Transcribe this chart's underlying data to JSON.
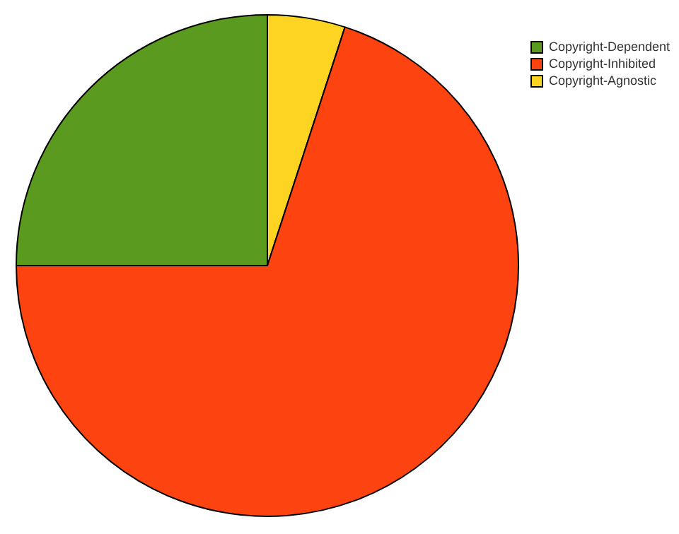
{
  "chart_data": {
    "type": "pie",
    "categories": [
      "Copyright-Dependent",
      "Copyright-Inhibited",
      "Copyright-Agnostic"
    ],
    "values": [
      25,
      70,
      5
    ],
    "colors": [
      "#5a9a1f",
      "#fc4310",
      "#fed422"
    ],
    "legend": "top right"
  }
}
